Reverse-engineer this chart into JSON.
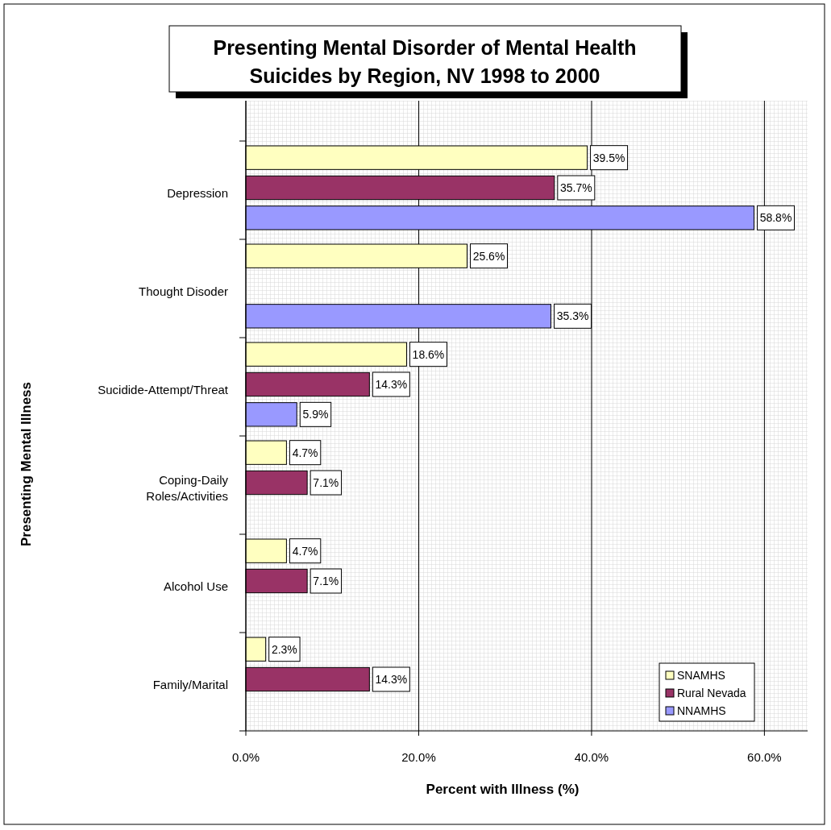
{
  "chart_data": {
    "type": "bar",
    "orientation": "horizontal",
    "title": "Presenting Mental Disorder of Mental Health Suicides by Region, NV 1998 to 2000",
    "xlabel": "Percent with Illness (%)",
    "ylabel": "Presenting Mental Illness",
    "categories": [
      "Depression",
      "Thought Disoder",
      "Sucidide-Attempt/Threat",
      "Coping-Daily Roles/Activities",
      "Alcohol Use",
      "Family/Marital"
    ],
    "series": [
      {
        "name": "SNAMHS",
        "color": "#ffffc0",
        "values": [
          39.5,
          25.6,
          18.6,
          4.7,
          4.7,
          2.3
        ],
        "value_labels": [
          "39.5%",
          "25.6%",
          "18.6%",
          "4.7%",
          "4.7%",
          "2.3%"
        ]
      },
      {
        "name": "Rural Nevada",
        "color": "#993366",
        "values": [
          35.7,
          null,
          14.3,
          7.1,
          7.1,
          14.3
        ],
        "value_labels": [
          "35.7%",
          null,
          "14.3%",
          "7.1%",
          "7.1%",
          "14.3%"
        ]
      },
      {
        "name": "NNAMHS",
        "color": "#9999ff",
        "values": [
          58.8,
          35.3,
          5.9,
          null,
          null,
          null
        ],
        "value_labels": [
          "58.8%",
          "35.3%",
          "5.9%",
          null,
          null,
          null
        ]
      }
    ],
    "xlim": [
      0,
      65
    ],
    "xticks": [
      {
        "value": 0,
        "label": "0.0%"
      },
      {
        "value": 20,
        "label": "20.0%"
      },
      {
        "value": 40,
        "label": "40.0%"
      },
      {
        "value": 60,
        "label": "60.0%"
      }
    ],
    "grid": "x",
    "legend": "bottom right"
  }
}
